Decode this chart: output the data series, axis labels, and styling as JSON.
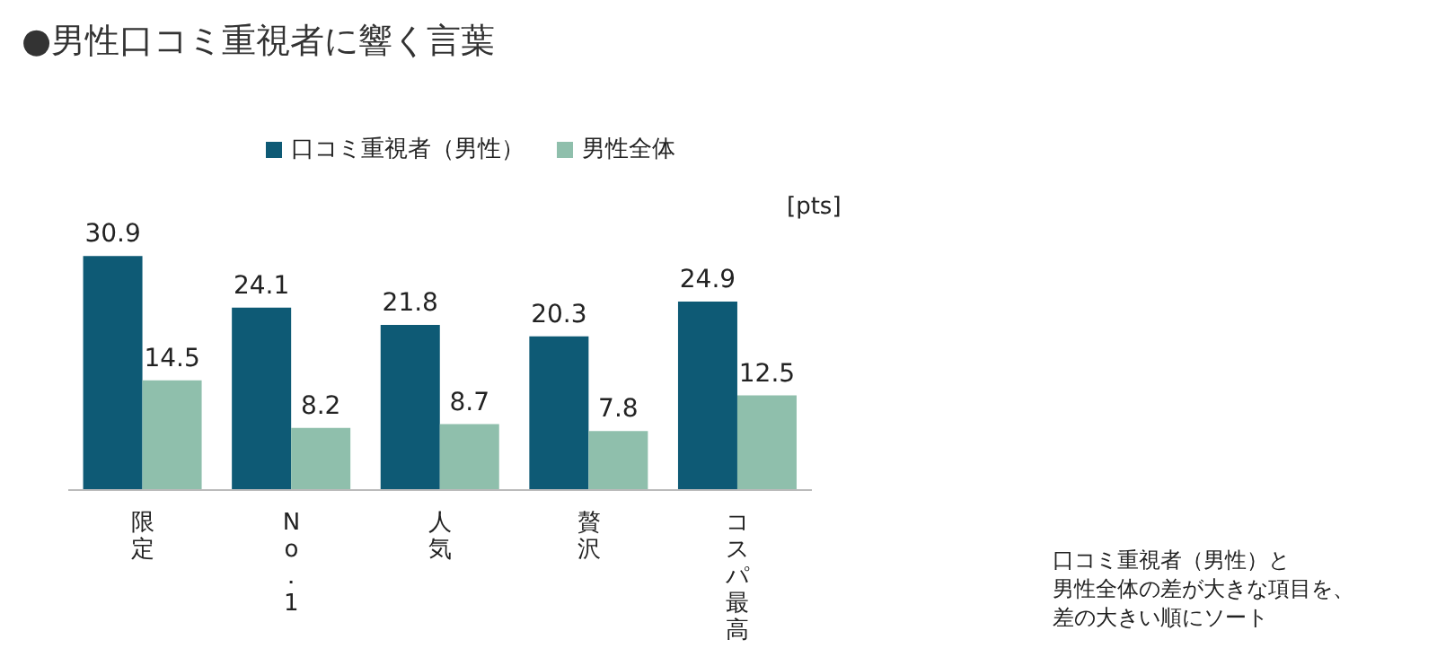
{
  "chart_data": {
    "type": "bar",
    "title": "●男性口コミ重視者に響く言葉",
    "ylabel": "[pts]",
    "categories": [
      "限定",
      "No．1",
      "人気",
      "贅沢",
      "コスパ最高"
    ],
    "series": [
      {
        "name": "口コミ重視者（男性）",
        "color": "#0e5a75",
        "values": [
          30.9,
          24.1,
          21.8,
          20.3,
          24.9
        ]
      },
      {
        "name": "男性全体",
        "color": "#8fbfac",
        "values": [
          14.5,
          8.2,
          8.7,
          7.8,
          12.5
        ]
      }
    ],
    "data_labels": true,
    "legend": "top",
    "grid": false,
    "annotations": [
      "口コミ重視者（男性）と",
      "男性全体の差が大きな項目を、",
      "差の大きい順にソート"
    ]
  }
}
